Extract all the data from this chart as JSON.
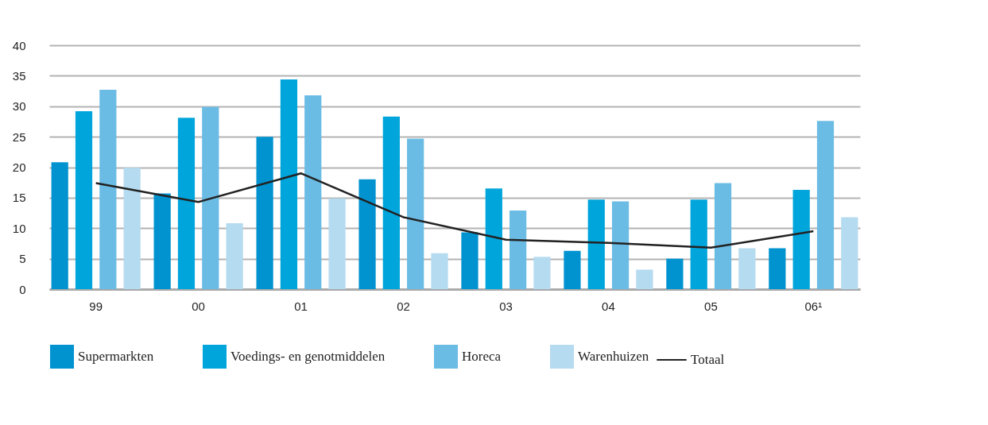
{
  "chart_data": {
    "type": "bar",
    "categories": [
      "99",
      "00",
      "01",
      "02",
      "03",
      "04",
      "05",
      "06¹"
    ],
    "series": [
      {
        "name": "Supermarkten",
        "color": "#0093d0",
        "values": [
          20.8,
          15.7,
          25.0,
          18.0,
          9.3,
          6.3,
          5.0,
          6.7
        ]
      },
      {
        "name": "Voedings- en genotmiddelen",
        "color": "#00a5db",
        "values": [
          29.2,
          28.1,
          34.4,
          28.3,
          16.5,
          14.7,
          14.7,
          16.3
        ]
      },
      {
        "name": "Horeca",
        "color": "#6bbce4",
        "values": [
          32.7,
          29.9,
          31.8,
          24.7,
          12.9,
          14.4,
          17.4,
          27.6
        ]
      },
      {
        "name": "Warenhuizen",
        "color": "#b5dbf0",
        "values": [
          19.9,
          10.8,
          14.9,
          5.9,
          5.3,
          3.2,
          6.7,
          11.8
        ]
      },
      {
        "name": "Totaal",
        "type": "line",
        "color": "#222222",
        "values": [
          17.4,
          14.3,
          19.0,
          11.8,
          8.1,
          7.6,
          6.8,
          9.5
        ]
      }
    ],
    "ylim": [
      0,
      40
    ],
    "yticks": [
      0,
      5,
      10,
      15,
      20,
      25,
      30,
      35,
      40
    ],
    "grid": "y",
    "legend": "bottom"
  }
}
